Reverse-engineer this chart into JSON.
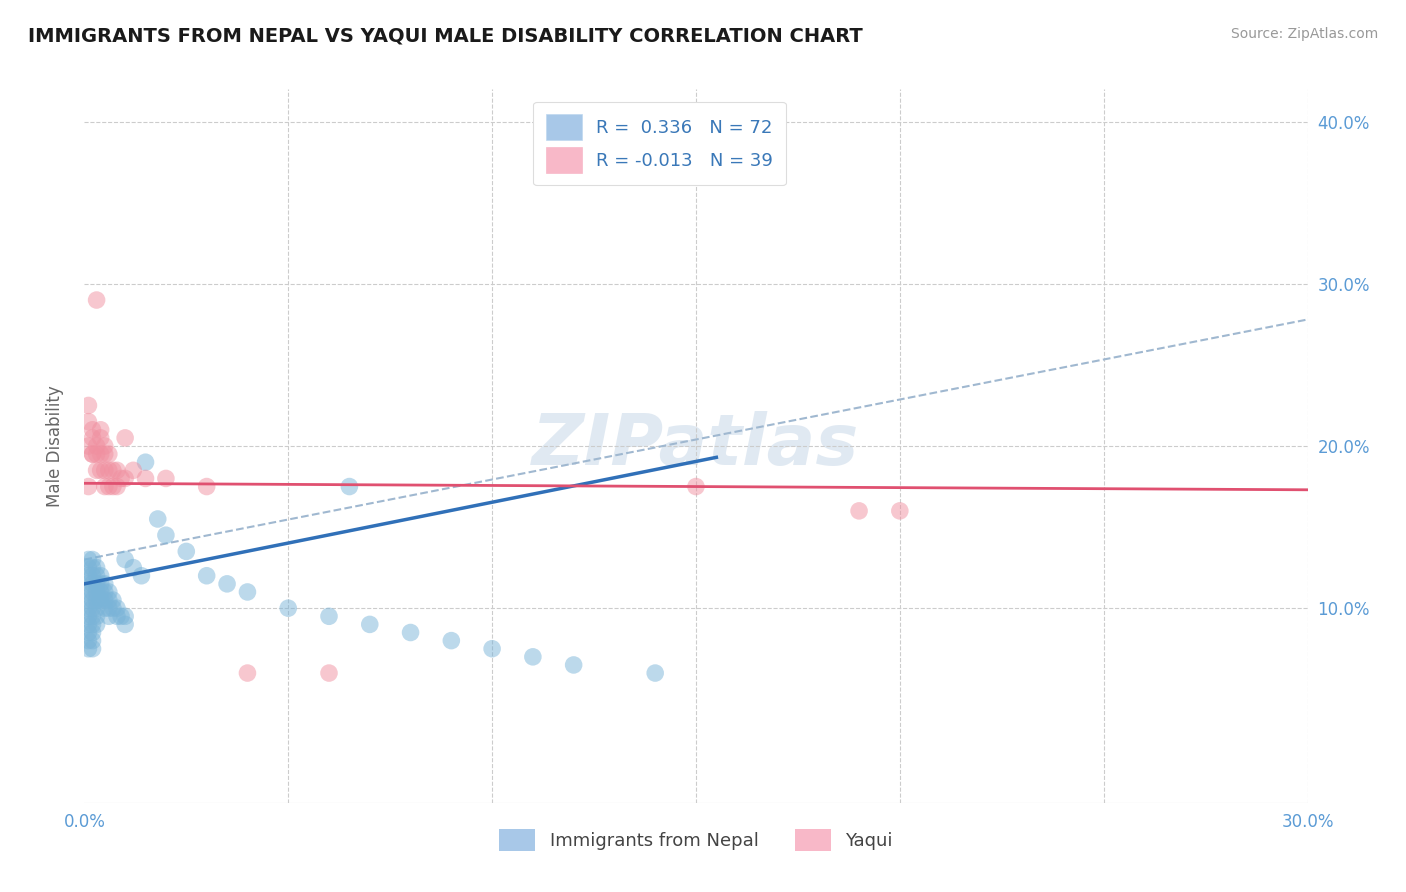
{
  "title": "IMMIGRANTS FROM NEPAL VS YAQUI MALE DISABILITY CORRELATION CHART",
  "source": "Source: ZipAtlas.com",
  "ylabel": "Male Disability",
  "watermark": "ZIPatlas",
  "xlim": [
    0.0,
    0.3
  ],
  "ylim": [
    -0.02,
    0.42
  ],
  "nepal_color": "#7ab4d8",
  "yaqui_color": "#f090a0",
  "nepal_line_color": "#3070b8",
  "yaqui_line_color": "#e05070",
  "nepal_line": [
    [
      0.0,
      0.115
    ],
    [
      0.155,
      0.193
    ]
  ],
  "yaqui_line": [
    [
      0.0,
      0.177
    ],
    [
      0.3,
      0.173
    ]
  ],
  "dashed_line": [
    [
      0.0,
      0.13
    ],
    [
      0.3,
      0.278
    ]
  ],
  "nepal_scatter": [
    [
      0.001,
      0.13
    ],
    [
      0.001,
      0.125
    ],
    [
      0.001,
      0.12
    ],
    [
      0.001,
      0.115
    ],
    [
      0.001,
      0.11
    ],
    [
      0.001,
      0.105
    ],
    [
      0.001,
      0.1
    ],
    [
      0.001,
      0.095
    ],
    [
      0.001,
      0.09
    ],
    [
      0.001,
      0.085
    ],
    [
      0.001,
      0.08
    ],
    [
      0.001,
      0.075
    ],
    [
      0.002,
      0.13
    ],
    [
      0.002,
      0.125
    ],
    [
      0.002,
      0.12
    ],
    [
      0.002,
      0.115
    ],
    [
      0.002,
      0.11
    ],
    [
      0.002,
      0.105
    ],
    [
      0.002,
      0.1
    ],
    [
      0.002,
      0.095
    ],
    [
      0.002,
      0.09
    ],
    [
      0.002,
      0.085
    ],
    [
      0.002,
      0.08
    ],
    [
      0.002,
      0.075
    ],
    [
      0.003,
      0.125
    ],
    [
      0.003,
      0.12
    ],
    [
      0.003,
      0.115
    ],
    [
      0.003,
      0.11
    ],
    [
      0.003,
      0.105
    ],
    [
      0.003,
      0.1
    ],
    [
      0.003,
      0.095
    ],
    [
      0.003,
      0.09
    ],
    [
      0.004,
      0.12
    ],
    [
      0.004,
      0.115
    ],
    [
      0.004,
      0.11
    ],
    [
      0.004,
      0.105
    ],
    [
      0.005,
      0.115
    ],
    [
      0.005,
      0.11
    ],
    [
      0.005,
      0.105
    ],
    [
      0.005,
      0.1
    ],
    [
      0.006,
      0.11
    ],
    [
      0.006,
      0.105
    ],
    [
      0.006,
      0.1
    ],
    [
      0.006,
      0.095
    ],
    [
      0.007,
      0.105
    ],
    [
      0.007,
      0.1
    ],
    [
      0.008,
      0.1
    ],
    [
      0.008,
      0.095
    ],
    [
      0.009,
      0.095
    ],
    [
      0.01,
      0.13
    ],
    [
      0.01,
      0.095
    ],
    [
      0.01,
      0.09
    ],
    [
      0.012,
      0.125
    ],
    [
      0.014,
      0.12
    ],
    [
      0.015,
      0.19
    ],
    [
      0.018,
      0.155
    ],
    [
      0.02,
      0.145
    ],
    [
      0.025,
      0.135
    ],
    [
      0.03,
      0.12
    ],
    [
      0.035,
      0.115
    ],
    [
      0.04,
      0.11
    ],
    [
      0.05,
      0.1
    ],
    [
      0.06,
      0.095
    ],
    [
      0.065,
      0.175
    ],
    [
      0.07,
      0.09
    ],
    [
      0.08,
      0.085
    ],
    [
      0.09,
      0.08
    ],
    [
      0.1,
      0.075
    ],
    [
      0.11,
      0.07
    ],
    [
      0.12,
      0.065
    ],
    [
      0.14,
      0.06
    ]
  ],
  "yaqui_scatter": [
    [
      0.001,
      0.175
    ],
    [
      0.001,
      0.2
    ],
    [
      0.001,
      0.225
    ],
    [
      0.001,
      0.215
    ],
    [
      0.002,
      0.195
    ],
    [
      0.002,
      0.21
    ],
    [
      0.002,
      0.205
    ],
    [
      0.002,
      0.195
    ],
    [
      0.003,
      0.29
    ],
    [
      0.003,
      0.2
    ],
    [
      0.003,
      0.195
    ],
    [
      0.003,
      0.185
    ],
    [
      0.004,
      0.21
    ],
    [
      0.004,
      0.205
    ],
    [
      0.004,
      0.195
    ],
    [
      0.004,
      0.185
    ],
    [
      0.005,
      0.2
    ],
    [
      0.005,
      0.195
    ],
    [
      0.005,
      0.185
    ],
    [
      0.005,
      0.175
    ],
    [
      0.006,
      0.195
    ],
    [
      0.006,
      0.185
    ],
    [
      0.006,
      0.175
    ],
    [
      0.007,
      0.185
    ],
    [
      0.007,
      0.175
    ],
    [
      0.008,
      0.185
    ],
    [
      0.008,
      0.175
    ],
    [
      0.009,
      0.18
    ],
    [
      0.01,
      0.205
    ],
    [
      0.01,
      0.18
    ],
    [
      0.012,
      0.185
    ],
    [
      0.015,
      0.18
    ],
    [
      0.02,
      0.18
    ],
    [
      0.03,
      0.175
    ],
    [
      0.04,
      0.06
    ],
    [
      0.06,
      0.06
    ],
    [
      0.15,
      0.175
    ],
    [
      0.19,
      0.16
    ],
    [
      0.2,
      0.16
    ]
  ]
}
